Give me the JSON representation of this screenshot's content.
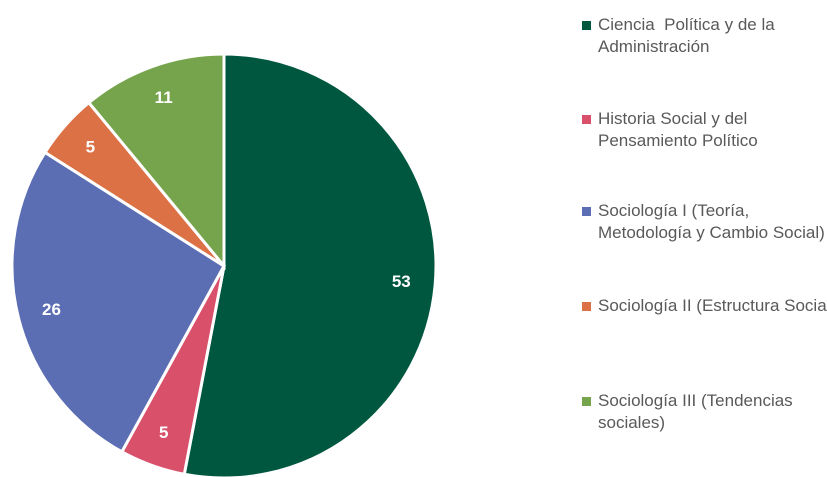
{
  "chart_data": {
    "type": "pie",
    "categories": [
      "Ciencia  Política y de la Administración",
      "Historia Social y del Pensamiento Político",
      "Sociología I (Teoría, Metodología y Cambio Social)",
      "Sociología II (Estructura Social)",
      "Sociología III (Tendencias sociales)"
    ],
    "values": [
      53,
      5,
      26,
      5,
      11
    ],
    "colors": [
      "#00573f",
      "#d9506a",
      "#5b6db3",
      "#db7145",
      "#76a44c"
    ],
    "legend": "right"
  }
}
